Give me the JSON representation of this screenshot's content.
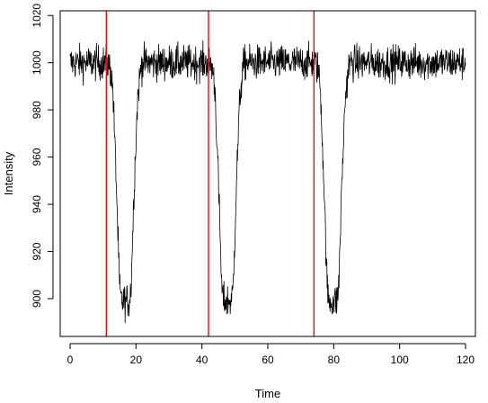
{
  "chart_data": {
    "type": "line",
    "title": "",
    "xlabel": "Time",
    "ylabel": "Intensity",
    "xlim": [
      -3,
      123
    ],
    "ylim": [
      884,
      1022
    ],
    "x_ticks": [
      0,
      20,
      40,
      60,
      80,
      100,
      120
    ],
    "y_ticks": [
      900,
      920,
      940,
      960,
      980,
      1000,
      1020
    ],
    "x_tick_labels": [
      "0",
      "20",
      "40",
      "60",
      "80",
      "100",
      "120"
    ],
    "y_tick_labels": [
      "900",
      "920",
      "940",
      "960",
      "980",
      "1000",
      "1020"
    ],
    "grid": false,
    "legend": "none",
    "series": [
      {
        "color": "#000000",
        "noise_amplitude": 5,
        "points": [
          [
            0,
            1000
          ],
          [
            11,
            1000
          ],
          [
            11.8,
            999
          ],
          [
            12.3,
            997
          ],
          [
            13,
            988
          ],
          [
            14,
            950
          ],
          [
            15,
            905
          ],
          [
            15.5,
            899
          ],
          [
            18,
            899
          ],
          [
            18.5,
            905
          ],
          [
            19.5,
            950
          ],
          [
            20.5,
            985
          ],
          [
            21.5,
            998
          ],
          [
            22,
            1000
          ],
          [
            42,
            1000
          ],
          [
            42.8,
            999
          ],
          [
            43.3,
            997
          ],
          [
            44,
            988
          ],
          [
            45,
            950
          ],
          [
            46,
            905
          ],
          [
            46.5,
            899
          ],
          [
            49,
            899
          ],
          [
            49.5,
            905
          ],
          [
            50.5,
            950
          ],
          [
            51.5,
            985
          ],
          [
            52.5,
            998
          ],
          [
            53,
            1000
          ],
          [
            74,
            1000
          ],
          [
            74.8,
            999
          ],
          [
            75.3,
            997
          ],
          [
            76,
            988
          ],
          [
            77,
            950
          ],
          [
            78,
            905
          ],
          [
            78.5,
            899
          ],
          [
            81,
            899
          ],
          [
            81.5,
            905
          ],
          [
            82.5,
            950
          ],
          [
            83.5,
            985
          ],
          [
            84.5,
            998
          ],
          [
            85,
            1000
          ],
          [
            120,
            1000
          ]
        ]
      }
    ],
    "vlines": [
      {
        "x": 11,
        "color": "#ff0000"
      },
      {
        "x": 42,
        "color": "#ff0000"
      },
      {
        "x": 74,
        "color": "#ff0000"
      }
    ]
  }
}
